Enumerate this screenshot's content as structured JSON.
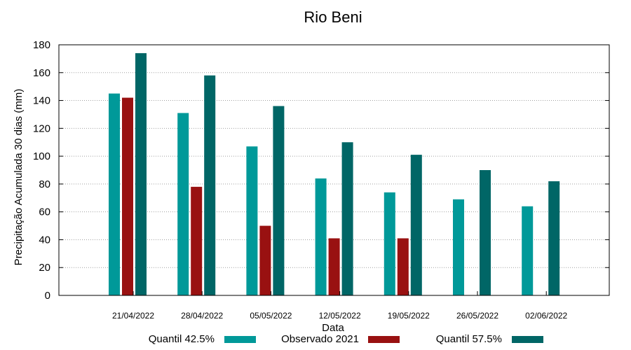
{
  "chart_data": {
    "type": "bar",
    "title": "Rio Beni",
    "xlabel": "Data",
    "ylabel": "Precipitação Acumulada 30 dias (mm)",
    "ylim": [
      0,
      180
    ],
    "yticks": [
      0,
      20,
      40,
      60,
      80,
      100,
      120,
      140,
      160,
      180
    ],
    "grid": true,
    "legend_position": "bottom",
    "categories": [
      "21/04/2022",
      "28/04/2022",
      "05/05/2022",
      "12/05/2022",
      "19/05/2022",
      "26/05/2022",
      "02/06/2022"
    ],
    "series": [
      {
        "name": "Quantil 42.5%",
        "color": "#009999",
        "values": [
          145,
          131,
          107,
          84,
          74,
          69,
          64
        ]
      },
      {
        "name": "Observado 2021",
        "color": "#991111",
        "values": [
          142,
          78,
          50,
          41,
          41,
          null,
          null
        ]
      },
      {
        "name": "Quantil 57.5%",
        "color": "#006666",
        "values": [
          174,
          158,
          136,
          110,
          101,
          90,
          82
        ]
      }
    ]
  }
}
